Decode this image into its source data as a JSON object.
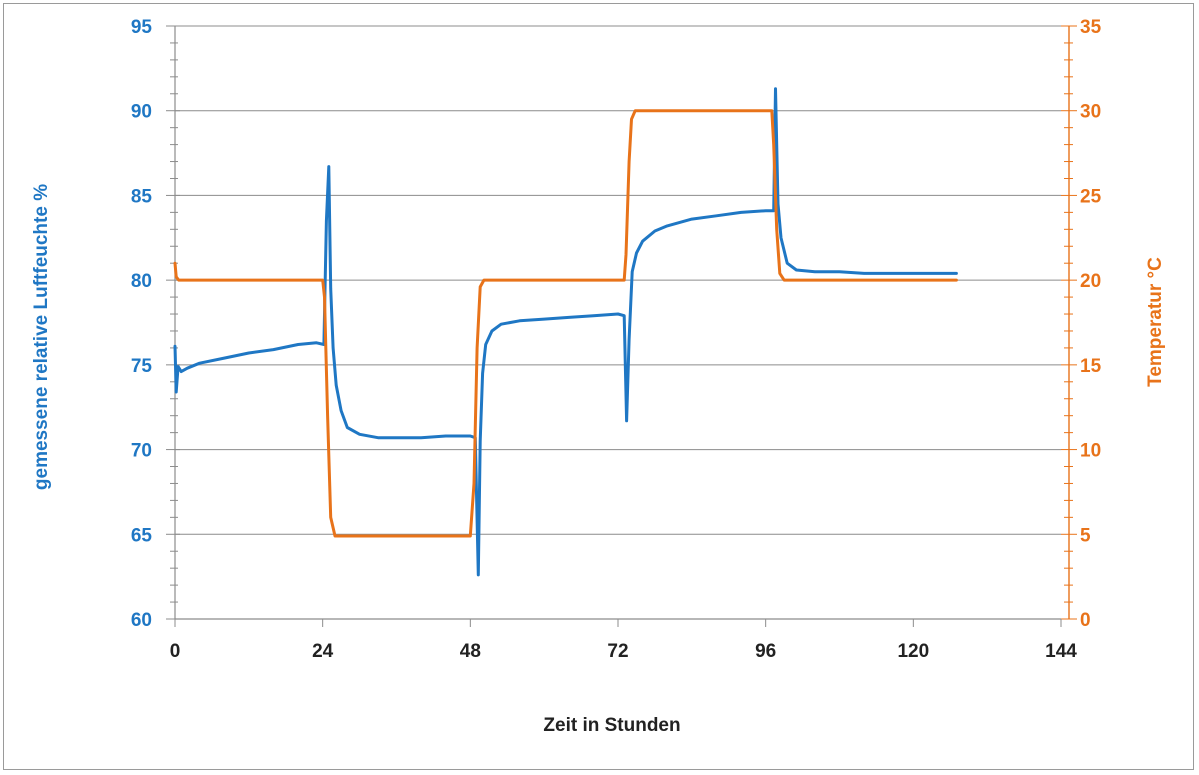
{
  "chart_data": {
    "type": "line",
    "title": "",
    "xlabel": "Zeit in Stunden",
    "ylabel_left": "gemessene relative Luftfeuchte %",
    "ylabel_right": "Temperatur  °C",
    "xlim": [
      0,
      144
    ],
    "xticks": [
      "0",
      "24",
      "48",
      "72",
      "96",
      "120",
      "144"
    ],
    "ylim_left": [
      60,
      95
    ],
    "yticks_left": [
      "60",
      "65",
      "70",
      "75",
      "80",
      "85",
      "90",
      "95"
    ],
    "ylim_right": [
      0,
      35
    ],
    "yticks_right": [
      "0",
      "5",
      "10",
      "15",
      "20",
      "25",
      "30",
      "35"
    ],
    "grid": true,
    "colors": {
      "humidity": "#1f77c4",
      "temperature": "#e8731a",
      "grid": "#8c8c8c"
    },
    "series": [
      {
        "axis": "left",
        "x": [
          0,
          0.2,
          0.5,
          1,
          2,
          4,
          8,
          12,
          16,
          20,
          23,
          24.2,
          24.6,
          25,
          25.3,
          25.7,
          26.2,
          27,
          28,
          30,
          33,
          36,
          40,
          44,
          48,
          48.8,
          49.3,
          49.6,
          50,
          50.5,
          51.5,
          53,
          56,
          60,
          64,
          68,
          72,
          73,
          73.4,
          73.8,
          74.3,
          75,
          76,
          78,
          80,
          84,
          88,
          92,
          96,
          97.3,
          97.6,
          97.8,
          98,
          98.5,
          99.5,
          101,
          104,
          108,
          112,
          116,
          120,
          124,
          127
        ],
        "y": [
          76.1,
          73.4,
          74.9,
          74.6,
          74.8,
          75.1,
          75.4,
          75.7,
          75.9,
          76.2,
          76.3,
          76.2,
          83.5,
          86.7,
          79.5,
          76.0,
          73.8,
          72.3,
          71.3,
          70.9,
          70.7,
          70.7,
          70.7,
          70.8,
          70.8,
          70.7,
          62.6,
          70.5,
          74.5,
          76.2,
          77.0,
          77.4,
          77.6,
          77.7,
          77.8,
          77.9,
          78.0,
          77.9,
          71.7,
          76.5,
          80.5,
          81.6,
          82.3,
          82.9,
          83.2,
          83.6,
          83.8,
          84.0,
          84.1,
          84.1,
          91.3,
          88.0,
          84.5,
          82.5,
          81.0,
          80.6,
          80.5,
          80.5,
          80.4,
          80.4,
          80.4,
          80.4,
          80.4
        ]
      },
      {
        "axis": "right",
        "x": [
          0,
          0.2,
          0.6,
          1,
          12,
          24,
          24.3,
          24.8,
          25.3,
          26,
          40,
          48,
          48.6,
          49.1,
          49.6,
          50.2,
          60,
          73,
          73.3,
          73.8,
          74.2,
          74.8,
          90,
          97,
          97.3,
          97.8,
          98.3,
          99,
          110,
          127
        ],
        "y": [
          21,
          20.2,
          20.0,
          20.0,
          20.0,
          20.0,
          19.0,
          12.0,
          6.0,
          4.9,
          4.9,
          4.9,
          8.0,
          16.0,
          19.6,
          20.0,
          20.0,
          20.0,
          21.5,
          27.0,
          29.5,
          30.0,
          30.0,
          30.0,
          28.0,
          23.0,
          20.4,
          20.0,
          20.0,
          20.0
        ]
      }
    ]
  }
}
